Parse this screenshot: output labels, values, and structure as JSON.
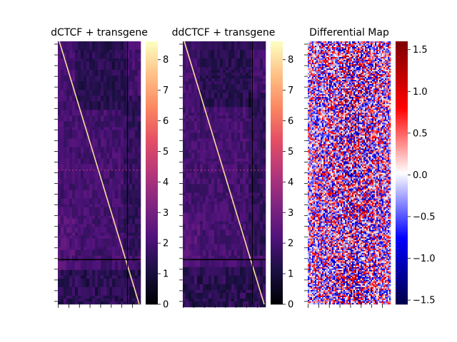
{
  "chart_data": [
    {
      "type": "heatmap",
      "title": "dCTCF + transgene",
      "colormap": "magma",
      "colorbar": {
        "range": [
          0,
          8.6
        ],
        "ticks": [
          0,
          1,
          2,
          3,
          4,
          5,
          6,
          7,
          8
        ],
        "tick_labels": [
          "0",
          "1",
          "2",
          "3",
          "4",
          "5",
          "6",
          "7",
          "8"
        ]
      },
      "features": {
        "diagonal": "top-left to bottom-right, value ~8",
        "horizontal_line_row_fraction": 0.83,
        "vertical_line_col_fraction": 0.84,
        "dashed_row_fraction": 0.49
      }
    },
    {
      "type": "heatmap",
      "title": "ddCTCF + transgene",
      "colormap": "magma",
      "colorbar": {
        "range": [
          0,
          8.6
        ],
        "ticks": [
          0,
          1,
          2,
          3,
          4,
          5,
          6,
          7,
          8
        ],
        "tick_labels": [
          "0",
          "1",
          "2",
          "3",
          "4",
          "5",
          "6",
          "7",
          "8"
        ]
      },
      "features": {
        "diagonal": "top-left to bottom-right, value ~8",
        "horizontal_line_row_fraction": 0.83,
        "vertical_line_col_fraction": 0.84,
        "dashed_row_fraction": 0.49
      }
    },
    {
      "type": "heatmap",
      "title": "Differential Map",
      "colormap": "seismic",
      "colorbar": {
        "range": [
          -1.55,
          1.6
        ],
        "ticks": [
          -1.5,
          -1.0,
          -0.5,
          0.0,
          0.5,
          1.0,
          1.5
        ],
        "tick_labels": [
          "−1.5",
          "−1.0",
          "−0.5",
          "0.0",
          "0.5",
          "1.0",
          "1.5"
        ]
      }
    }
  ]
}
